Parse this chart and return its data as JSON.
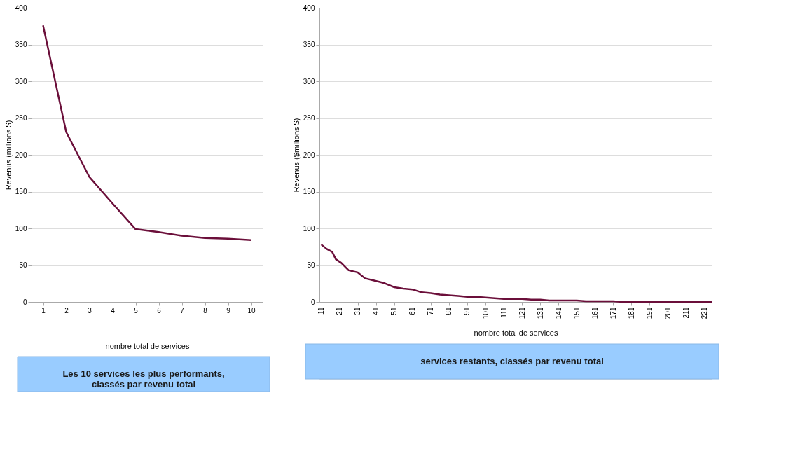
{
  "chart_data": [
    {
      "type": "line",
      "xlabel": "nombre total de services",
      "ylabel": "Revenus (millions $)",
      "categories": [
        "1",
        "2",
        "3",
        "4",
        "5",
        "6",
        "7",
        "8",
        "9",
        "10"
      ],
      "series": [
        {
          "color": "#6b0f3a",
          "values": [
            376,
            231,
            170,
            134,
            99,
            95,
            90,
            87,
            86,
            84
          ]
        }
      ],
      "ylim": [
        0,
        400
      ],
      "yticks": [
        0,
        50,
        100,
        150,
        200,
        250,
        300,
        350,
        400
      ],
      "grid": "y",
      "annotations": [
        "Les 10 services les plus performants,\nclassés par revenu total"
      ]
    },
    {
      "type": "line",
      "xlabel": "nombre total de services",
      "ylabel": "Revenus ($millions $)",
      "series": [
        {
          "color": "#6b0f3a",
          "x": [
            11,
            14,
            17,
            19,
            22,
            26,
            31,
            35,
            40,
            45,
            51,
            56,
            61,
            66,
            71,
            76,
            81,
            86,
            91,
            96,
            101,
            106,
            111,
            116,
            121,
            126,
            131,
            136,
            141,
            146,
            151,
            156,
            161,
            166,
            171,
            176,
            181,
            191,
            201,
            211,
            221,
            225
          ],
          "values": [
            78,
            72,
            68,
            58,
            53,
            43,
            40,
            32,
            29,
            26,
            20,
            18,
            17,
            13,
            12,
            10,
            9,
            8,
            7,
            7,
            6,
            5,
            4,
            4,
            4,
            3,
            3,
            2,
            2,
            2,
            2,
            1,
            1,
            1,
            1,
            0,
            0,
            0,
            0,
            0,
            0,
            0
          ]
        }
      ],
      "xlim": [
        10,
        225
      ],
      "xticks": [
        11,
        21,
        31,
        41,
        51,
        61,
        71,
        81,
        91,
        101,
        111,
        121,
        131,
        141,
        151,
        161,
        171,
        181,
        191,
        201,
        211,
        221
      ],
      "ylim": [
        0,
        400
      ],
      "yticks": [
        0,
        50,
        100,
        150,
        200,
        250,
        300,
        350,
        400
      ],
      "grid": "y",
      "annotations": [
        "services restants, classés par revenu total"
      ]
    }
  ]
}
